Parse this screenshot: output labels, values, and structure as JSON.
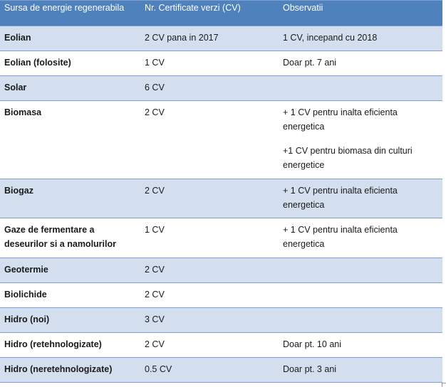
{
  "headers": [
    "Sursa de energie regenerabila",
    "Nr. Certificate verzi (CV)",
    "Observatii"
  ],
  "rows": [
    {
      "source": "Eolian",
      "cv": "2 CV pana in 2017",
      "notes": [
        "1 CV, incepand cu 2018"
      ]
    },
    {
      "source": "Eolian (folosite)",
      "cv": "1 CV",
      "notes": [
        "Doar pt. 7 ani"
      ]
    },
    {
      "source": "Solar",
      "cv": "6 CV",
      "notes": []
    },
    {
      "source": "Biomasa",
      "cv": "2 CV",
      "notes": [
        "+ 1 CV pentru inalta eficienta energetica",
        "+1 CV pentru biomasa din culturi energetice"
      ]
    },
    {
      "source": "Biogaz",
      "cv": "2 CV",
      "notes": [
        "+ 1 CV pentru inalta eficienta energetica"
      ]
    },
    {
      "source": "Gaze de fermentare a deseurilor si a namolurilor",
      "cv": "1 CV",
      "notes": [
        "+ 1 CV pentru inalta eficienta energetica"
      ]
    },
    {
      "source": "Geotermie",
      "cv": "2 CV",
      "notes": []
    },
    {
      "source": "Biolichide",
      "cv": "2 CV",
      "notes": []
    },
    {
      "source": "Hidro (noi)",
      "cv": "3 CV",
      "notes": []
    },
    {
      "source": "Hidro (retehnologizate)",
      "cv": "2 CV",
      "notes": [
        "Doar pt. 10 ani"
      ]
    },
    {
      "source": "Hidro (neretehnologizate)",
      "cv": "0.5 CV",
      "notes": [
        "Doar pt. 3 ani"
      ]
    }
  ],
  "colors": {
    "header": "#4f81bd",
    "band": "#d3dfee",
    "border": "#7f9fcf"
  }
}
